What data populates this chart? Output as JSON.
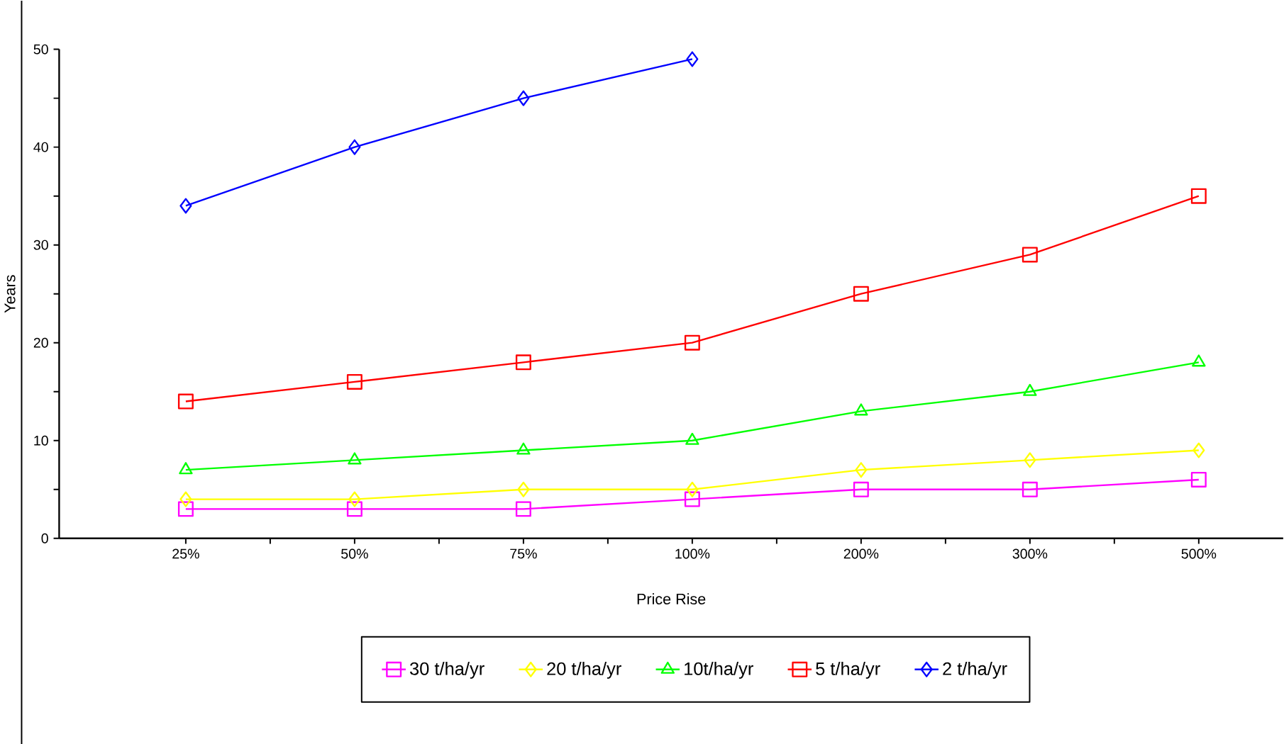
{
  "chart_data": {
    "type": "line",
    "xlabel": "Price Rise",
    "ylabel": "Years",
    "categories": [
      "25%",
      "50%",
      "75%",
      "100%",
      "200%",
      "300%",
      "500%"
    ],
    "series": [
      {
        "name": "30 t/ha/yr",
        "color": "#ff00ff",
        "marker": "square",
        "values": [
          3,
          3,
          3,
          4,
          5,
          5,
          6
        ]
      },
      {
        "name": "20 t/ha/yr",
        "color": "#ffff00",
        "marker": "diamond",
        "values": [
          4,
          4,
          5,
          5,
          7,
          8,
          9
        ]
      },
      {
        "name": "10t/ha/yr",
        "color": "#00ff00",
        "marker": "triangle",
        "values": [
          7,
          8,
          9,
          10,
          13,
          15,
          18
        ]
      },
      {
        "name": "5 t/ha/yr",
        "color": "#ff0000",
        "marker": "square",
        "values": [
          14,
          16,
          18,
          20,
          25,
          29,
          35
        ]
      },
      {
        "name": "2 t/ha/yr",
        "color": "#0000ff",
        "marker": "diamond",
        "values": [
          34,
          40,
          45,
          49,
          null,
          null,
          null
        ]
      }
    ],
    "ylim": [
      0,
      50
    ],
    "yticks": [
      0,
      10,
      20,
      30,
      40,
      50
    ],
    "grid": false,
    "legend": "bottom"
  }
}
